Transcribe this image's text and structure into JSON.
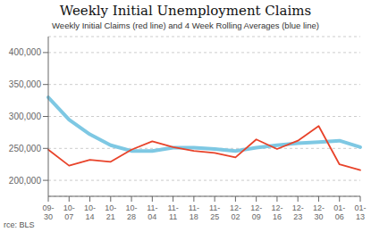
{
  "chart_data": {
    "type": "line",
    "title": "Weekly Initial Unemployment Claims",
    "subtitle": "Weekly Initial Claims (red line) and 4 Week Rolling Averages (blue line)",
    "source": "rce: BLS",
    "categories": [
      "09-\n30",
      "10-\n07",
      "10-\n14",
      "10-\n21",
      "10-\n28",
      "11-\n04",
      "11-\n11",
      "11-\n18",
      "11-\n25",
      "12-\n02",
      "12-\n09",
      "12-\n16",
      "12-\n23",
      "12-\n30",
      "01-\n06",
      "01-\n13"
    ],
    "series": [
      {
        "color": "#7ec8e3",
        "values": [
          330000,
          295000,
          272000,
          255000,
          246000,
          246000,
          251000,
          251000,
          249000,
          246000,
          251000,
          255000,
          258000,
          260000,
          262000,
          252000
        ]
      },
      {
        "color": "#e8432a",
        "values": [
          248000,
          223000,
          232000,
          229000,
          248000,
          261000,
          252000,
          246000,
          243000,
          236000,
          264000,
          249000,
          262000,
          285000,
          225000,
          216000
        ]
      }
    ],
    "ylim": [
      175000,
      425000
    ],
    "yticks": [
      {
        "value": 200000,
        "label": "200,000"
      },
      {
        "value": 250000,
        "label": "250,000"
      },
      {
        "value": 300000,
        "label": "300,000"
      },
      {
        "value": 350000,
        "label": "350,000"
      },
      {
        "value": 400000,
        "label": "400,000"
      }
    ],
    "grid": true
  }
}
